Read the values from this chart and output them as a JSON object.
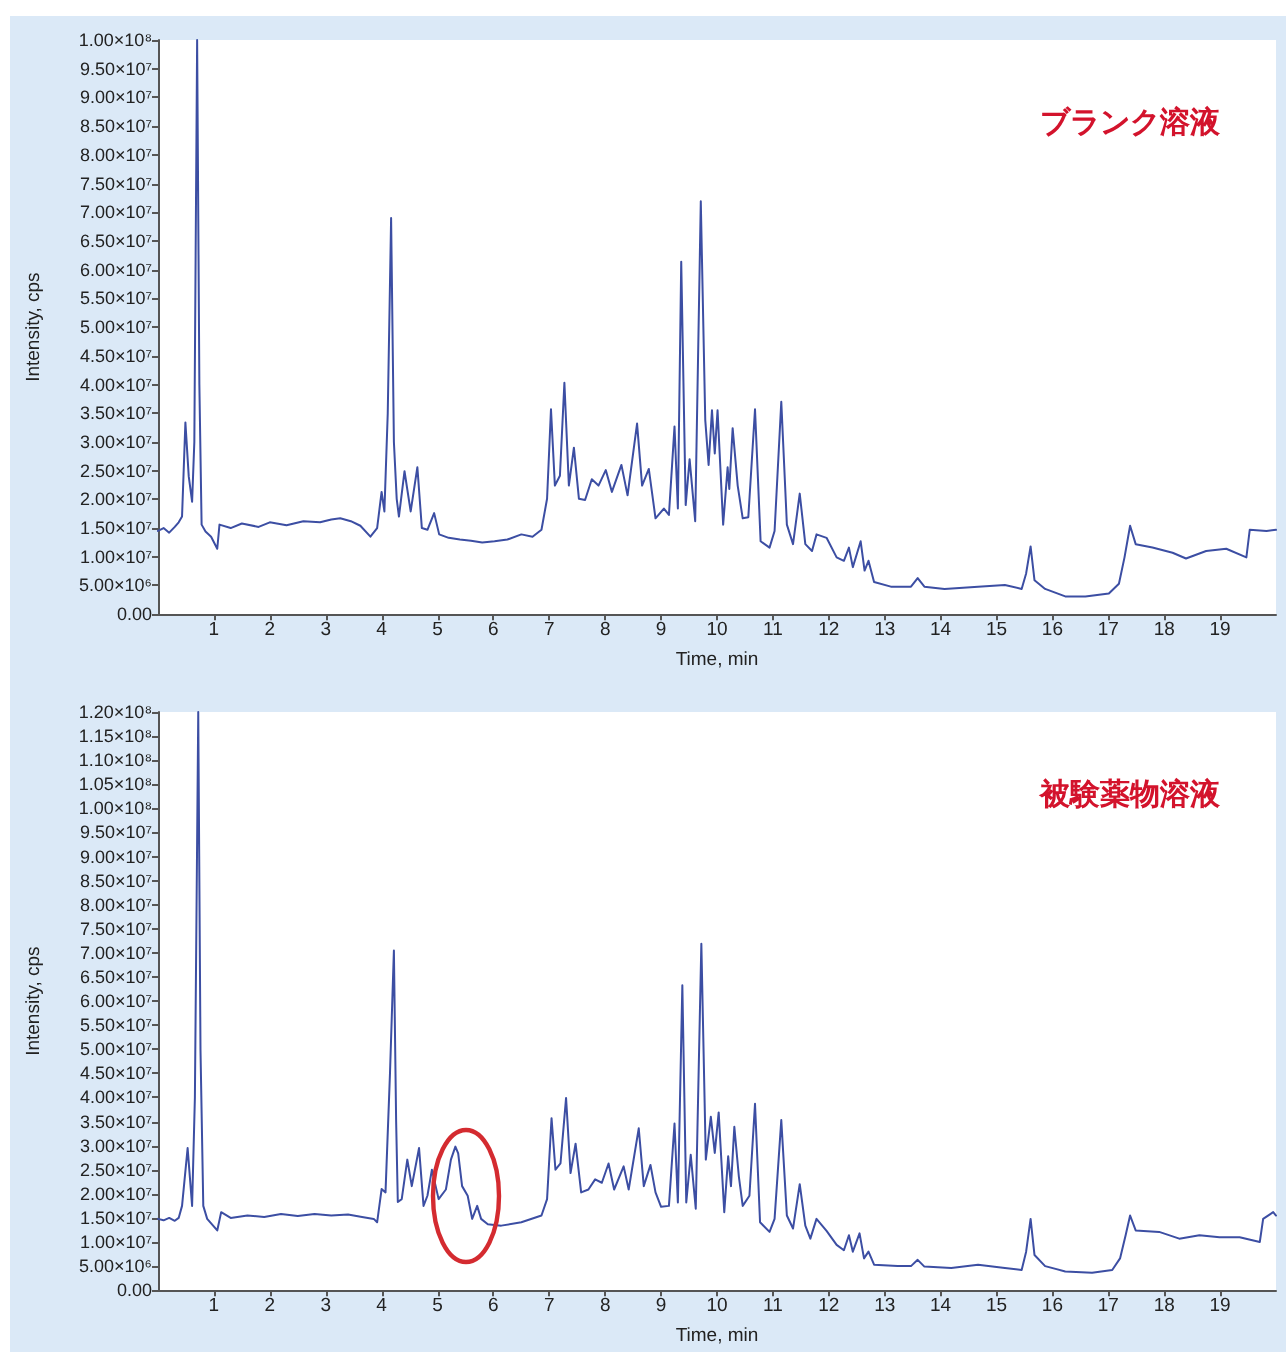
{
  "chart_data": [
    {
      "type": "line",
      "xlabel": "Time, min",
      "ylabel": "Intensity, cps",
      "annotations": [
        "ブランク溶液"
      ],
      "color": "#3c4ea3",
      "x": [
        0,
        0.1,
        0.2,
        0.3,
        0.37,
        0.43,
        0.49,
        0.55,
        0.61,
        0.65,
        0.7,
        0.74,
        0.78,
        0.85,
        0.95,
        1.06,
        1.1,
        1.3,
        1.5,
        1.8,
        2,
        2.3,
        2.6,
        2.9,
        3.1,
        3.26,
        3.45,
        3.62,
        3.8,
        3.92,
        4,
        4.05,
        4.11,
        4.17,
        4.22,
        4.27,
        4.31,
        4.41,
        4.52,
        4.64,
        4.72,
        4.82,
        4.94,
        5.03,
        5.2,
        5.4,
        5.6,
        5.8,
        6.02,
        6.25,
        6.5,
        6.7,
        6.86,
        6.96,
        7.03,
        7.1,
        7.19,
        7.27,
        7.35,
        7.44,
        7.53,
        7.64,
        7.76,
        7.88,
        8.01,
        8.12,
        8.29,
        8.4,
        8.57,
        8.66,
        8.78,
        8.9,
        9.05,
        9.14,
        9.24,
        9.3,
        9.36,
        9.44,
        9.51,
        9.61,
        9.71,
        9.79,
        9.85,
        9.91,
        9.96,
        10.01,
        10.11,
        10.19,
        10.22,
        10.28,
        10.37,
        10.46,
        10.56,
        10.68,
        10.78,
        10.94,
        11.03,
        11.15,
        11.25,
        11.36,
        11.48,
        11.58,
        11.7,
        11.78,
        11.96,
        12.14,
        12.27,
        12.36,
        12.43,
        12.57,
        12.64,
        12.71,
        12.81,
        13.11,
        13.47,
        13.59,
        13.71,
        14.07,
        14.67,
        15.15,
        15.45,
        15.53,
        15.61,
        15.68,
        15.87,
        16.23,
        16.59,
        17.01,
        17.19,
        17.29,
        17.39,
        17.49,
        17.79,
        18.15,
        18.39,
        18.75,
        19.11,
        19.47,
        19.53,
        19.83,
        20
      ],
      "values": [
        14500000.0,
        15000000.0,
        14200000.0,
        15200000.0,
        16000000.0,
        17000000.0,
        33400000.0,
        24000000.0,
        19600000.0,
        30000000.0,
        100000000.0,
        40000000.0,
        15600000.0,
        14400000.0,
        13500000.0,
        11400000.0,
        15600000.0,
        15000000.0,
        15800000.0,
        15200000.0,
        16000000.0,
        15500000.0,
        16200000.0,
        16000000.0,
        16500000.0,
        16700000.0,
        16200000.0,
        15400000.0,
        13500000.0,
        15000000.0,
        21300000.0,
        17900000.0,
        35000000.0,
        69000000.0,
        30000000.0,
        20100000.0,
        17000000.0,
        24900000.0,
        17900000.0,
        25600000.0,
        15000000.0,
        14700000.0,
        17600000.0,
        13900000.0,
        13300000.0,
        13000000.0,
        12800000.0,
        12500000.0,
        12700000.0,
        13000000.0,
        13900000.0,
        13500000.0,
        14700000.0,
        20100000.0,
        35700000.0,
        22400000.0,
        24100000.0,
        40300000.0,
        22400000.0,
        29000000.0,
        20100000.0,
        19900000.0,
        23500000.0,
        22400000.0,
        25100000.0,
        21300000.0,
        26000000.0,
        20700000.0,
        33200000.0,
        22400000.0,
        25300000.0,
        16700000.0,
        18400000.0,
        17300000.0,
        32700000.0,
        18400000.0,
        61400000.0,
        19000000.0,
        27000000.0,
        16200000.0,
        71900000.0,
        33800000.0,
        26000000.0,
        35500000.0,
        28000000.0,
        35500000.0,
        15600000.0,
        25600000.0,
        21800000.0,
        32400000.0,
        22400000.0,
        16700000.0,
        16900000.0,
        35700000.0,
        12700000.0,
        11600000.0,
        14500000.0,
        37000000.0,
        15600000.0,
        12200000.0,
        21000000.0,
        12200000.0,
        11000000.0,
        13900000.0,
        13300000.0,
        9900000.0,
        9300000.0,
        11600000.0,
        8200000.0,
        12700000.0,
        7600000.0,
        9300000.0,
        5600000.0,
        4800000.0,
        4800000.0,
        6300000.0,
        4800000.0,
        4400000.0,
        4800000.0,
        5100000.0,
        4400000.0,
        7100000.0,
        11800000.0,
        5900000.0,
        4400000.0,
        3100000.0,
        3100000.0,
        3600000.0,
        5300000.0,
        9900000.0,
        15400000.0,
        12200000.0,
        11600000.0,
        10700000.0,
        9700000.0,
        11000000.0,
        11400000.0,
        9900000.0,
        14700000.0,
        14500000.0,
        14700000.0
      ],
      "xlim": [
        0,
        20
      ],
      "xticks": [
        1,
        2,
        3,
        4,
        5,
        6,
        7,
        8,
        9,
        10,
        11,
        12,
        13,
        14,
        15,
        16,
        17,
        18,
        19
      ],
      "ylim": [
        0,
        100000000.0
      ],
      "yticks": [
        {
          "value": 0,
          "label": "0.00"
        },
        {
          "value": 5000000.0,
          "label": "5.00×10⁶"
        },
        {
          "value": 10000000.0,
          "label": "1.00×10⁷"
        },
        {
          "value": 15000000.0,
          "label": "1.50×10⁷"
        },
        {
          "value": 20000000.0,
          "label": "2.00×10⁷"
        },
        {
          "value": 25000000.0,
          "label": "2.50×10⁷"
        },
        {
          "value": 30000000.0,
          "label": "3.00×10⁷"
        },
        {
          "value": 35000000.0,
          "label": "3.50×10⁷"
        },
        {
          "value": 40000000.0,
          "label": "4.00×10⁷"
        },
        {
          "value": 45000000.0,
          "label": "4.50×10⁷"
        },
        {
          "value": 50000000.0,
          "label": "5.00×10⁷"
        },
        {
          "value": 55000000.0,
          "label": "5.50×10⁷"
        },
        {
          "value": 60000000.0,
          "label": "6.00×10⁷"
        },
        {
          "value": 65000000.0,
          "label": "6.50×10⁷"
        },
        {
          "value": 70000000.0,
          "label": "7.00×10⁷"
        },
        {
          "value": 75000000.0,
          "label": "7.50×10⁷"
        },
        {
          "value": 80000000.0,
          "label": "8.00×10⁷"
        },
        {
          "value": 85000000.0,
          "label": "8.50×10⁷"
        },
        {
          "value": 90000000.0,
          "label": "9.00×10⁷"
        },
        {
          "value": 95000000.0,
          "label": "9.50×10⁷"
        },
        {
          "value": 100000000.0,
          "label": "1.00×10⁸"
        }
      ]
    },
    {
      "type": "line",
      "xlabel": "Time, min",
      "ylabel": "Intensity, cps",
      "annotations": [
        "被験薬物溶液"
      ],
      "color": "#3c4ea3",
      "x": [
        0,
        0.1,
        0.2,
        0.3,
        0.37,
        0.43,
        0.53,
        0.61,
        0.66,
        0.72,
        0.76,
        0.81,
        0.88,
        1.06,
        1.13,
        1.3,
        1.6,
        1.9,
        2.2,
        2.5,
        2.8,
        3.1,
        3.4,
        3.65,
        3.86,
        3.92,
        4,
        4.07,
        4.15,
        4.22,
        4.26,
        4.29,
        4.36,
        4.46,
        4.54,
        4.67,
        4.75,
        4.82,
        4.9,
        5.02,
        5.15,
        5.24,
        5.32,
        5.37,
        5.44,
        5.54,
        5.62,
        5.71,
        5.78,
        5.9,
        6.14,
        6.5,
        6.86,
        6.96,
        7.04,
        7.11,
        7.2,
        7.3,
        7.38,
        7.47,
        7.57,
        7.7,
        7.82,
        7.94,
        8.06,
        8.16,
        8.33,
        8.42,
        8.6,
        8.69,
        8.81,
        8.9,
        9,
        9.14,
        9.24,
        9.3,
        9.38,
        9.45,
        9.53,
        9.62,
        9.72,
        9.8,
        9.89,
        9.96,
        10.03,
        10.13,
        10.2,
        10.25,
        10.31,
        10.39,
        10.46,
        10.58,
        10.68,
        10.77,
        10.94,
        11.03,
        11.15,
        11.25,
        11.36,
        11.48,
        11.58,
        11.67,
        11.78,
        11.96,
        12.14,
        12.27,
        12.36,
        12.43,
        12.55,
        12.63,
        12.71,
        12.81,
        13.23,
        13.47,
        13.59,
        13.71,
        14.19,
        14.67,
        15.15,
        15.45,
        15.53,
        15.61,
        15.68,
        15.87,
        16.23,
        16.71,
        17.07,
        17.21,
        17.31,
        17.39,
        17.49,
        17.91,
        18.27,
        18.63,
        18.99,
        19.35,
        19.71,
        19.77,
        19.95,
        20
      ],
      "values": [
        14800000.0,
        14500000.0,
        15000000.0,
        14400000.0,
        15000000.0,
        17500000.0,
        29500000.0,
        17500000.0,
        40000000.0,
        120000000.0,
        50000000.0,
        17500000.0,
        14800000.0,
        12400000.0,
        16200000.0,
        15000000.0,
        15500000.0,
        15200000.0,
        15800000.0,
        15400000.0,
        15800000.0,
        15500000.0,
        15700000.0,
        15200000.0,
        14800000.0,
        14100000.0,
        21000000.0,
        20300000.0,
        45000000.0,
        70500000.0,
        35000000.0,
        18300000.0,
        18900000.0,
        27100000.0,
        21600000.0,
        29500000.0,
        17500000.0,
        19600000.0,
        25000000.0,
        18900000.0,
        20900000.0,
        27100000.0,
        29800000.0,
        28400000.0,
        21600000.0,
        19600000.0,
        14800000.0,
        17500000.0,
        14800000.0,
        13700000.0,
        13400000.0,
        14100000.0,
        15500000.0,
        18900000.0,
        35700000.0,
        25000000.0,
        26300000.0,
        39900000.0,
        24300000.0,
        30400000.0,
        20300000.0,
        20900000.0,
        23000000.0,
        22300000.0,
        26300000.0,
        20900000.0,
        25700000.0,
        20900000.0,
        33600000.0,
        21600000.0,
        26000000.0,
        20300000.0,
        17300000.0,
        17500000.0,
        34600000.0,
        18200000.0,
        63300000.0,
        18200000.0,
        28100000.0,
        16900000.0,
        71900000.0,
        27100000.0,
        36000000.0,
        28500000.0,
        36900000.0,
        16200000.0,
        27800000.0,
        21600000.0,
        33900000.0,
        23700000.0,
        17500000.0,
        19600000.0,
        38700000.0,
        14100000.0,
        12100000.0,
        14800000.0,
        35300000.0,
        15500000.0,
        12800000.0,
        22000000.0,
        13400000.0,
        10700000.0,
        14800000.0,
        12300000.0,
        9400000.0,
        8300000.0,
        11400000.0,
        8000000.0,
        11800000.0,
        6600000.0,
        8000000.0,
        5300000.0,
        5000000.0,
        5000000.0,
        6300000.0,
        4900000.0,
        4600000.0,
        5300000.0,
        4600000.0,
        4200000.0,
        8000000.0,
        14800000.0,
        7300000.0,
        5000000.0,
        3900000.0,
        3600000.0,
        4200000.0,
        6600000.0,
        11400000.0,
        15500000.0,
        12400000.0,
        12100000.0,
        10700000.0,
        11400000.0,
        11000000.0,
        11000000.0,
        10000000.0,
        14800000.0,
        16200000.0,
        15500000.0
      ],
      "xlim": [
        0,
        20
      ],
      "xticks": [
        1,
        2,
        3,
        4,
        5,
        6,
        7,
        8,
        9,
        10,
        11,
        12,
        13,
        14,
        15,
        16,
        17,
        18,
        19
      ],
      "ylim": [
        0,
        120000000.0
      ],
      "yticks": [
        {
          "value": 0,
          "label": "0.00"
        },
        {
          "value": 5000000.0,
          "label": "5.00×10⁶"
        },
        {
          "value": 10000000.0,
          "label": "1.00×10⁷"
        },
        {
          "value": 15000000.0,
          "label": "1.50×10⁷"
        },
        {
          "value": 20000000.0,
          "label": "2.00×10⁷"
        },
        {
          "value": 25000000.0,
          "label": "2.50×10⁷"
        },
        {
          "value": 30000000.0,
          "label": "3.00×10⁷"
        },
        {
          "value": 35000000.0,
          "label": "3.50×10⁷"
        },
        {
          "value": 40000000.0,
          "label": "4.00×10⁷"
        },
        {
          "value": 45000000.0,
          "label": "4.50×10⁷"
        },
        {
          "value": 50000000.0,
          "label": "5.00×10⁷"
        },
        {
          "value": 55000000.0,
          "label": "5.50×10⁷"
        },
        {
          "value": 60000000.0,
          "label": "6.00×10⁷"
        },
        {
          "value": 65000000.0,
          "label": "6.50×10⁷"
        },
        {
          "value": 70000000.0,
          "label": "7.00×10⁷"
        },
        {
          "value": 75000000.0,
          "label": "7.50×10⁷"
        },
        {
          "value": 80000000.0,
          "label": "8.00×10⁷"
        },
        {
          "value": 85000000.0,
          "label": "8.50×10⁷"
        },
        {
          "value": 90000000.0,
          "label": "9.00×10⁷"
        },
        {
          "value": 95000000.0,
          "label": "9.50×10⁷"
        },
        {
          "value": 100000000.0,
          "label": "1.00×10⁸"
        },
        {
          "value": 105000000.0,
          "label": "1.05×10⁸"
        },
        {
          "value": 110000000.0,
          "label": "1.10×10⁸"
        },
        {
          "value": 115000000.0,
          "label": "1.15×10⁸"
        },
        {
          "value": 120000000.0,
          "label": "1.20×10⁸"
        }
      ]
    }
  ]
}
